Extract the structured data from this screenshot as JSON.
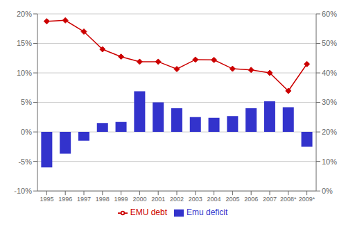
{
  "chart_data": {
    "type": "bar",
    "categories": [
      "1995",
      "1996",
      "1997",
      "1998",
      "1999",
      "2000",
      "2001",
      "2002",
      "2003",
      "2004",
      "2005",
      "2006",
      "2007",
      "2008*",
      "2009*"
    ],
    "series": [
      {
        "name": "Emu deficit",
        "type": "bar",
        "color": "#3333cc",
        "values": [
          -6.0,
          -3.7,
          -1.5,
          1.5,
          1.7,
          6.9,
          5.0,
          4.0,
          2.5,
          2.4,
          2.7,
          4.0,
          5.2,
          4.2,
          -2.5
        ]
      },
      {
        "name": "EMU debt",
        "type": "line",
        "axis": "y2",
        "color": "#cc0000",
        "marker": "diamond",
        "values": [
          57.5,
          57.8,
          54.0,
          48.0,
          45.5,
          43.8,
          43.8,
          41.3,
          44.5,
          44.4,
          41.4,
          41.0,
          40.0,
          33.9,
          43.0
        ]
      }
    ],
    "ylim": [
      -10,
      20
    ],
    "yticks": [
      {
        "value": -10,
        "label": "-10%"
      },
      {
        "value": -5,
        "label": "-5%"
      },
      {
        "value": 0,
        "label": "0%"
      },
      {
        "value": 5,
        "label": "5%"
      },
      {
        "value": 10,
        "label": "10%"
      },
      {
        "value": 15,
        "label": "15%"
      },
      {
        "value": 20,
        "label": "20%"
      }
    ],
    "y2lim": [
      0,
      60
    ],
    "y2ticks": [
      {
        "value": 0,
        "label": "0%"
      },
      {
        "value": 10,
        "label": "10%"
      },
      {
        "value": 20,
        "label": "20%"
      },
      {
        "value": 30,
        "label": "30%"
      },
      {
        "value": 40,
        "label": "40%"
      },
      {
        "value": 50,
        "label": "50%"
      },
      {
        "value": 60,
        "label": "60%"
      }
    ],
    "grid": true,
    "legend": "bottom"
  }
}
